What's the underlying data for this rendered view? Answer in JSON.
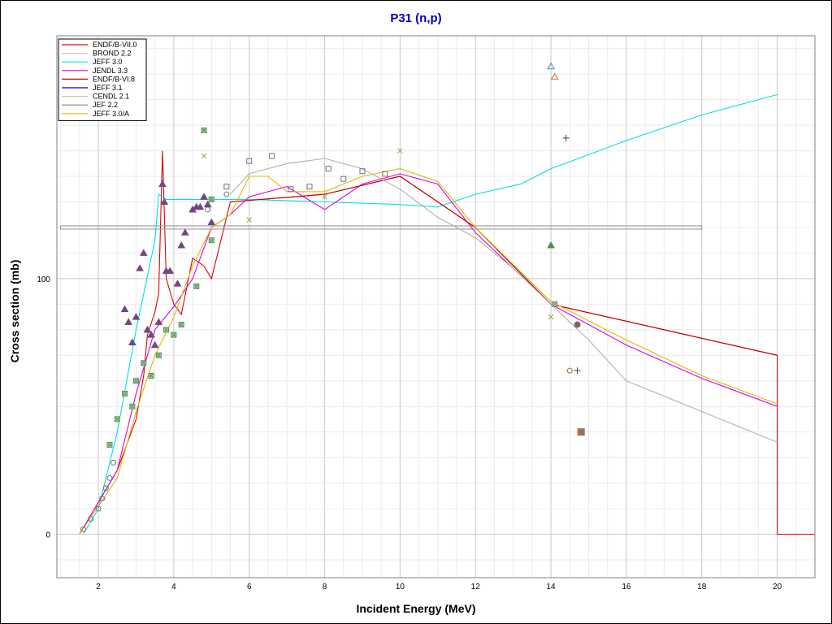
{
  "chart_data": {
    "type": "line",
    "title": "P31 (n,p)",
    "xlabel": "Incident Energy (MeV)",
    "ylabel": "Cross section (mb)",
    "xlim": [
      0.9,
      21.0
    ],
    "ylim": [
      -17,
      195
    ],
    "x_ticks": [
      2,
      4,
      6,
      8,
      10,
      12,
      14,
      16,
      18,
      20
    ],
    "y_ticks": [
      0,
      100
    ],
    "grid": "on",
    "legend": "top-left",
    "colors": {
      "title": "#0000c0",
      "grid_major": "#c8c8c8",
      "grid_minor": "#ebebeb"
    },
    "series": [
      {
        "name": "ENDF/B-VII.0",
        "color": "#e00000",
        "points": [
          [
            1.5,
            0
          ],
          [
            2.5,
            25
          ],
          [
            3.0,
            45
          ],
          [
            3.2,
            62
          ],
          [
            3.3,
            78
          ],
          [
            3.5,
            87
          ],
          [
            3.6,
            94
          ],
          [
            3.7,
            150
          ],
          [
            3.8,
            100
          ],
          [
            4.0,
            90
          ],
          [
            4.2,
            86
          ],
          [
            4.5,
            108
          ],
          [
            4.8,
            105
          ],
          [
            5.0,
            100
          ],
          [
            5.5,
            130
          ],
          [
            8,
            133
          ],
          [
            10,
            140
          ],
          [
            12,
            120
          ],
          [
            14,
            90
          ],
          [
            20,
            70
          ],
          [
            20,
            0
          ],
          [
            21,
            0
          ]
        ]
      },
      {
        "name": "BROND 2.2",
        "color": "#c8c8c8",
        "points": [
          [
            1.0,
            120
          ],
          [
            18.0,
            120
          ]
        ]
      },
      {
        "name": "JEFF 3.0",
        "color": "#00e0e0",
        "points": [
          [
            1.6,
            0
          ],
          [
            2.0,
            10
          ],
          [
            2.5,
            40
          ],
          [
            3.0,
            80
          ],
          [
            3.5,
            115
          ],
          [
            3.6,
            133
          ],
          [
            3.8,
            131
          ],
          [
            4.0,
            131
          ],
          [
            5.0,
            131
          ],
          [
            6.0,
            131
          ],
          [
            8.0,
            130
          ],
          [
            10.0,
            129
          ],
          [
            11.0,
            128
          ],
          [
            12.0,
            133
          ],
          [
            13.2,
            137
          ],
          [
            14.0,
            143
          ],
          [
            16.0,
            154
          ],
          [
            18.0,
            164
          ],
          [
            20.0,
            172
          ]
        ]
      },
      {
        "name": "JENDL 3.3",
        "color": "#e000e0",
        "points": [
          [
            1.5,
            0
          ],
          [
            2.5,
            25
          ],
          [
            3.0,
            55
          ],
          [
            3.5,
            80
          ],
          [
            4.0,
            89
          ],
          [
            4.5,
            100
          ],
          [
            5.0,
            120
          ],
          [
            5.5,
            125
          ],
          [
            6.0,
            132
          ],
          [
            7.0,
            136
          ],
          [
            8.0,
            127
          ],
          [
            9.0,
            137
          ],
          [
            10.0,
            141
          ],
          [
            11.0,
            137
          ],
          [
            12.0,
            118
          ],
          [
            14.0,
            90
          ],
          [
            16.0,
            74
          ],
          [
            18.0,
            61
          ],
          [
            20.0,
            50
          ]
        ]
      },
      {
        "name": "ENDF/B-VI.8",
        "color": "#c00000",
        "points": [
          [
            5.5,
            130
          ],
          [
            8.0,
            133
          ],
          [
            10.0,
            140
          ],
          [
            12.0,
            120
          ],
          [
            14.0,
            90
          ],
          [
            20.0,
            70
          ]
        ]
      },
      {
        "name": "JEFF 3.1",
        "color": "#0000c0",
        "points": []
      },
      {
        "name": "CENDL 2.1",
        "color": "#c8c8a0",
        "points": []
      },
      {
        "name": "JEF 2.2",
        "color": "#808080",
        "points": []
      },
      {
        "name": "JEFF 3.0/A",
        "color": "#e0b800",
        "points": [
          [
            1.5,
            0
          ],
          [
            2.5,
            22
          ],
          [
            3.0,
            48
          ],
          [
            3.5,
            70
          ],
          [
            4.0,
            85
          ],
          [
            4.5,
            105
          ],
          [
            5.0,
            120
          ],
          [
            5.5,
            125
          ],
          [
            6.0,
            140
          ],
          [
            6.5,
            140
          ],
          [
            7.0,
            134
          ],
          [
            8.0,
            134
          ],
          [
            9.0,
            140
          ],
          [
            10.0,
            143
          ],
          [
            11.0,
            138
          ],
          [
            12.0,
            120
          ],
          [
            14.0,
            91
          ],
          [
            16.0,
            76
          ],
          [
            18.0,
            62
          ],
          [
            20.0,
            51
          ]
        ]
      },
      {
        "name": "",
        "color": "#b0b0b0",
        "points": [
          [
            5.5,
            133
          ],
          [
            6.0,
            141
          ],
          [
            7.0,
            145
          ],
          [
            8.0,
            147
          ],
          [
            9.0,
            143
          ],
          [
            10.0,
            135
          ],
          [
            11.0,
            124
          ],
          [
            12.0,
            116
          ],
          [
            13.0,
            104
          ],
          [
            14.0,
            90
          ],
          [
            15.0,
            76
          ],
          [
            16.0,
            60
          ],
          [
            17.0,
            54
          ],
          [
            18.0,
            48
          ],
          [
            20.0,
            36
          ]
        ]
      }
    ],
    "experimental": [
      {
        "marker": "triangle-filled",
        "color": "#704880",
        "points": [
          [
            2.7,
            88
          ],
          [
            2.8,
            83
          ],
          [
            2.9,
            75
          ],
          [
            3.0,
            85
          ],
          [
            3.1,
            104
          ],
          [
            3.2,
            110
          ],
          [
            3.3,
            80
          ],
          [
            3.4,
            78
          ],
          [
            3.5,
            74
          ],
          [
            3.6,
            83
          ],
          [
            3.7,
            137
          ],
          [
            3.75,
            130
          ],
          [
            3.8,
            103
          ],
          [
            3.9,
            103
          ],
          [
            4.1,
            98
          ],
          [
            4.2,
            113
          ],
          [
            4.3,
            118
          ],
          [
            4.5,
            127
          ],
          [
            4.6,
            128
          ],
          [
            4.7,
            128
          ],
          [
            4.8,
            132
          ],
          [
            4.9,
            129
          ],
          [
            5.0,
            122
          ]
        ]
      },
      {
        "marker": "square-x",
        "color": "#509050",
        "points": [
          [
            2.3,
            35
          ],
          [
            2.5,
            45
          ],
          [
            2.7,
            55
          ],
          [
            2.9,
            50
          ],
          [
            3.0,
            60
          ],
          [
            3.2,
            67
          ],
          [
            3.4,
            62
          ],
          [
            3.6,
            70
          ],
          [
            3.8,
            80
          ],
          [
            4.0,
            78
          ],
          [
            4.2,
            82
          ],
          [
            4.6,
            97
          ],
          [
            4.8,
            158
          ],
          [
            5.0,
            131
          ],
          [
            5.0,
            115
          ]
        ]
      },
      {
        "marker": "square-open",
        "color": "#707090",
        "points": [
          [
            5.4,
            136
          ],
          [
            6.0,
            146
          ],
          [
            6.6,
            148
          ],
          [
            7.1,
            135
          ],
          [
            7.6,
            136
          ],
          [
            8.1,
            143
          ],
          [
            8.5,
            139
          ],
          [
            9.0,
            142
          ],
          [
            9.6,
            141
          ]
        ]
      },
      {
        "marker": "circle-open",
        "color": "#707070",
        "points": [
          [
            1.6,
            2
          ],
          [
            1.8,
            6
          ],
          [
            2.0,
            10
          ],
          [
            2.1,
            14
          ],
          [
            2.2,
            18
          ],
          [
            2.3,
            22
          ],
          [
            2.4,
            28
          ],
          [
            4.9,
            127
          ],
          [
            5.4,
            133
          ]
        ]
      },
      {
        "marker": "x",
        "color": "#a0a040",
        "points": [
          [
            4.8,
            148
          ],
          [
            6.0,
            123
          ],
          [
            8.0,
            132
          ],
          [
            10.0,
            150
          ],
          [
            14.0,
            85
          ]
        ]
      },
      {
        "marker": "plus",
        "color": "#404040",
        "points": [
          [
            14.4,
            155
          ],
          [
            14.7,
            64
          ]
        ]
      },
      {
        "marker": "triangle-open",
        "color": "#5080c0",
        "points": [
          [
            14.0,
            183
          ]
        ]
      },
      {
        "marker": "triangle-open",
        "color": "#e07040",
        "points": [
          [
            14.1,
            179
          ]
        ]
      },
      {
        "marker": "triangle-filled",
        "color": "#509050",
        "points": [
          [
            14.0,
            113
          ]
        ]
      },
      {
        "marker": "circle-filled",
        "color": "#806070",
        "points": [
          [
            14.7,
            82
          ]
        ]
      },
      {
        "marker": "square-filled",
        "color": "#a07050",
        "points": [
          [
            14.8,
            40
          ]
        ]
      },
      {
        "marker": "circle-open",
        "color": "#a07050",
        "points": [
          [
            14.5,
            64
          ]
        ]
      },
      {
        "marker": "square-x",
        "color": "#808080",
        "points": [
          [
            14.1,
            90
          ]
        ]
      }
    ]
  }
}
